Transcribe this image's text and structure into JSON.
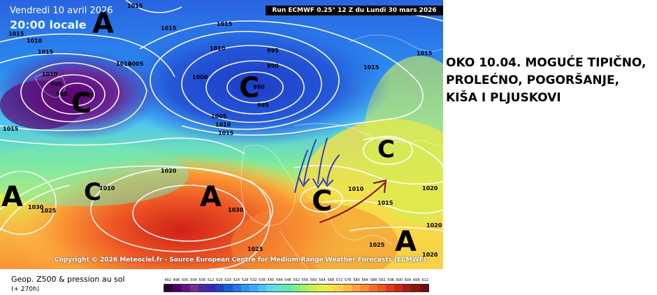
{
  "map": {
    "date": "Vendredi 10 avril 2026",
    "time_label": "20:00 locale",
    "run_info": "Run ECMWF 0.25° 12 Z du Lundi 30 mars 2026",
    "copyright": "Copyright © 2026 Meteociel.fr - Source European Centre for Medium-Range Weather Forecasts (ECMWF)",
    "pressure_systems": [
      {
        "id": "a1",
        "label": "A"
      },
      {
        "id": "c1",
        "label": "C"
      },
      {
        "id": "c2",
        "label": "C"
      },
      {
        "id": "a2",
        "label": "A"
      },
      {
        "id": "c3",
        "label": "C"
      },
      {
        "id": "a3",
        "label": "A"
      },
      {
        "id": "c4",
        "label": "C"
      },
      {
        "id": "c5",
        "label": "C"
      },
      {
        "id": "a4",
        "label": "A"
      }
    ],
    "isobar_labels": [
      {
        "id": "i1",
        "value": "1015"
      },
      {
        "id": "i2",
        "value": "1015"
      },
      {
        "id": "i3",
        "value": "1015"
      },
      {
        "id": "i4",
        "value": "1010"
      },
      {
        "id": "i5",
        "value": "1015"
      },
      {
        "id": "i6",
        "value": "1010"
      },
      {
        "id": "i7",
        "value": "1005"
      },
      {
        "id": "i8",
        "value": "995"
      },
      {
        "id": "i9",
        "value": "985"
      },
      {
        "id": "i10",
        "value": "985"
      },
      {
        "id": "i11",
        "value": "1010"
      },
      {
        "id": "i12",
        "value": "1010"
      },
      {
        "id": "i13",
        "value": "1015"
      },
      {
        "id": "i14",
        "value": "1015"
      },
      {
        "id": "i15",
        "value": "995"
      },
      {
        "id": "i16",
        "value": "990"
      },
      {
        "id": "i17",
        "value": "1000"
      },
      {
        "id": "i18",
        "value": "980"
      },
      {
        "id": "i19",
        "value": "985"
      },
      {
        "id": "i20",
        "value": "1005"
      },
      {
        "id": "i21",
        "value": "1010"
      },
      {
        "id": "i22",
        "value": "1015"
      },
      {
        "id": "i23",
        "value": "1015"
      },
      {
        "id": "i24",
        "value": "1015"
      },
      {
        "id": "i25",
        "value": "1020"
      },
      {
        "id": "i26",
        "value": "1030"
      },
      {
        "id": "i27",
        "value": "1025"
      },
      {
        "id": "i28",
        "value": "1030"
      },
      {
        "id": "i29",
        "value": "1025"
      },
      {
        "id": "i30",
        "value": "1010"
      },
      {
        "id": "i31",
        "value": "1010"
      },
      {
        "id": "i32",
        "value": "1015"
      },
      {
        "id": "i33",
        "value": "1020"
      },
      {
        "id": "i34",
        "value": "1020"
      },
      {
        "id": "i35",
        "value": "1025"
      },
      {
        "id": "i36",
        "value": "1020"
      }
    ]
  },
  "caption": {
    "line1": "Geop. Z500 & pression au sol",
    "line2": "(+ 270h)"
  },
  "legend": {
    "labels": [
      "492",
      "496",
      "500",
      "504",
      "508",
      "512",
      "516",
      "520",
      "524",
      "528",
      "532",
      "536",
      "540",
      "544",
      "548",
      "552",
      "556",
      "560",
      "564",
      "568",
      "572",
      "576",
      "580",
      "584",
      "588",
      "592",
      "596",
      "600",
      "604",
      "608",
      "612"
    ],
    "colors": [
      "#2a0030",
      "#4a0060",
      "#6a1080",
      "#7a2a9a",
      "#4a2aa0",
      "#2a2ab4",
      "#1e40c8",
      "#1a5cdc",
      "#2278ec",
      "#2a94f4",
      "#36acf8",
      "#48c4f8",
      "#5cd8f0",
      "#5ee4d0",
      "#62eaa8",
      "#7cf07c",
      "#a4f060",
      "#c8f04c",
      "#e6ee48",
      "#f6e24a",
      "#fad24a",
      "#fcbc44",
      "#fca43a",
      "#fa8c30",
      "#f47028",
      "#ec5422",
      "#dc3a1c",
      "#c42818",
      "#a81a18",
      "#8a1414",
      "#6a1010"
    ]
  },
  "annotation": {
    "lines": [
      "OKO 10.04. MOGUĆE TIPIČNO,",
      "PROLEĆNO, POGORŠANJE,",
      "KIŠA I PLJUSKOVI"
    ]
  }
}
